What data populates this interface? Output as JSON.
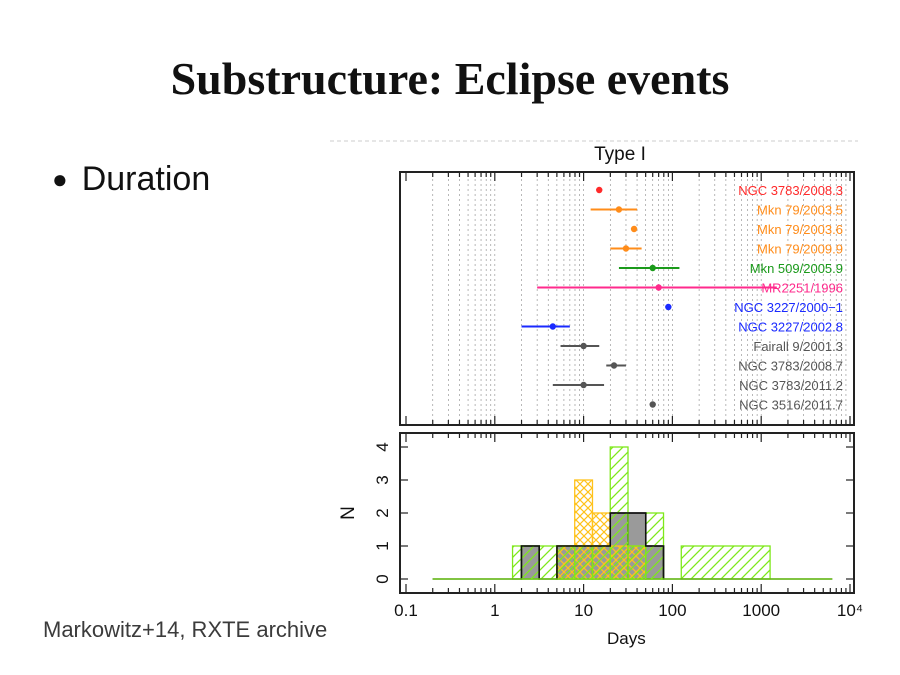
{
  "slide": {
    "title": "Substructure: Eclipse events",
    "bullet": "Duration",
    "caption": "Markowitz+14, RXTE archive",
    "xlabel": "Days"
  },
  "chart_data": [
    {
      "type": "scatter",
      "title": "Type I",
      "xscale": "log",
      "xlim": [
        0.1,
        10000
      ],
      "series": [
        {
          "name": "NGC 3783/2008.3",
          "color": "#ff2a2a",
          "x": 15,
          "xerr": null
        },
        {
          "name": "Mkn 79/2003.5",
          "color": "#ff8c1a",
          "x": 25,
          "xerr": [
            12,
            40
          ]
        },
        {
          "name": "Mkn 79/2003.6",
          "color": "#ff8c1a",
          "x": 37,
          "xerr": null
        },
        {
          "name": "Mkn 79/2009.9",
          "color": "#ff8c1a",
          "x": 30,
          "xerr": [
            20,
            45
          ]
        },
        {
          "name": "Mkn 509/2005.9",
          "color": "#1a9a1a",
          "x": 60,
          "xerr": [
            25,
            120
          ]
        },
        {
          "name": "MR2251/1996",
          "color": "#ff2a8c",
          "x": 70,
          "xerr": [
            3,
            1500
          ]
        },
        {
          "name": "NGC 3227/2000−1",
          "color": "#1a2aff",
          "x": 90,
          "xerr": null
        },
        {
          "name": "NGC 3227/2002.8",
          "color": "#1a2aff",
          "x": 4.5,
          "xerr": [
            2,
            7
          ]
        },
        {
          "name": "Fairall 9/2001.3",
          "color": "#555555",
          "x": 10,
          "xerr": [
            5.5,
            15
          ]
        },
        {
          "name": "NGC 3783/2008.7",
          "color": "#555555",
          "x": 22,
          "xerr": [
            18,
            30
          ]
        },
        {
          "name": "NGC 3783/2011.2",
          "color": "#555555",
          "x": 10,
          "xerr": [
            4.5,
            17
          ]
        },
        {
          "name": "NGC 3516/2011.7",
          "color": "#555555",
          "x": 60,
          "xerr": null
        }
      ]
    },
    {
      "type": "histogram",
      "xscale": "log",
      "xlim": [
        0.1,
        10000
      ],
      "ylabel": "N",
      "ylim": [
        0,
        4
      ],
      "yticks": [
        "0",
        "1",
        "2",
        "3",
        "4"
      ],
      "xticks": [
        "0.1",
        "1",
        "10",
        "100",
        "1000",
        "10⁴"
      ],
      "bin_edges_log10": [
        -0.7,
        0.2,
        0.3,
        0.5,
        0.7,
        0.9,
        1.1,
        1.3,
        1.5,
        1.7,
        1.9,
        2.1,
        3.1,
        3.3,
        3.8
      ],
      "series": [
        {
          "name": "black (gray fill)",
          "color": "#111111",
          "fill": "#9a9a9a",
          "counts": [
            0,
            0,
            1,
            0,
            1,
            1,
            1,
            2,
            2,
            1,
            0,
            0,
            0,
            0
          ]
        },
        {
          "name": "orange hatched",
          "color": "#ffc21a",
          "counts": [
            0,
            0,
            0,
            0,
            1,
            3,
            2,
            1,
            1,
            0,
            0,
            0,
            0,
            0
          ]
        },
        {
          "name": "green hatched",
          "color": "#7ee81a",
          "counts": [
            0,
            1,
            1,
            1,
            1,
            1,
            1,
            4,
            1,
            2,
            0,
            1,
            0,
            0
          ]
        }
      ]
    }
  ]
}
